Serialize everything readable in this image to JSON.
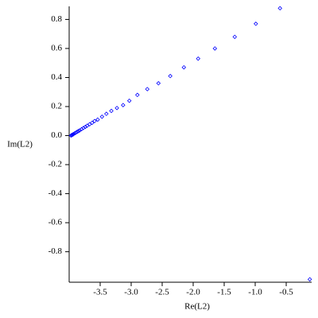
{
  "chart_data": {
    "type": "scatter",
    "x_label": "Re(L2)",
    "y_label": "Im(L2)",
    "color": "#0000ff",
    "x": [
      -0.12,
      -0.6,
      -0.99,
      -1.33,
      -1.65,
      -1.92,
      -2.15,
      -2.37,
      -2.56,
      -2.74,
      -2.9,
      -3.03,
      -3.13,
      -3.23,
      -3.32,
      -3.4,
      -3.47,
      -3.54,
      -3.59,
      -3.63,
      -3.67,
      -3.71,
      -3.74,
      -3.77,
      -3.8,
      -3.83,
      -3.85,
      -3.87,
      -3.89,
      -3.91,
      -3.93,
      -3.94,
      -3.95,
      -3.96,
      -3.97
    ],
    "y": [
      -0.99,
      0.877,
      0.77,
      0.68,
      0.6,
      0.53,
      0.47,
      0.41,
      0.36,
      0.32,
      0.28,
      0.24,
      0.21,
      0.19,
      0.17,
      0.15,
      0.13,
      0.11,
      0.1,
      0.088,
      0.078,
      0.068,
      0.06,
      0.052,
      0.044,
      0.036,
      0.031,
      0.026,
      0.021,
      0.016,
      0.01,
      0.008,
      0.005,
      0.003,
      0.0
    ],
    "xlim": [
      -4.0,
      -0.09
    ],
    "ylim": [
      -1.01,
      0.89
    ],
    "xticks": [
      -3.5,
      {
        "value": -3.0,
        "label": "-3.0"
      },
      -2.5,
      {
        "value": -2.0,
        "label": "-2.0"
      },
      -1.5,
      {
        "value": -1.0,
        "label": "-1.0"
      },
      -0.5
    ],
    "yticks": [
      -0.8,
      -0.6,
      -0.4,
      -0.2,
      {
        "value": 0.0,
        "label": "0.0"
      },
      0.2,
      0.4,
      0.6,
      0.8
    ]
  }
}
